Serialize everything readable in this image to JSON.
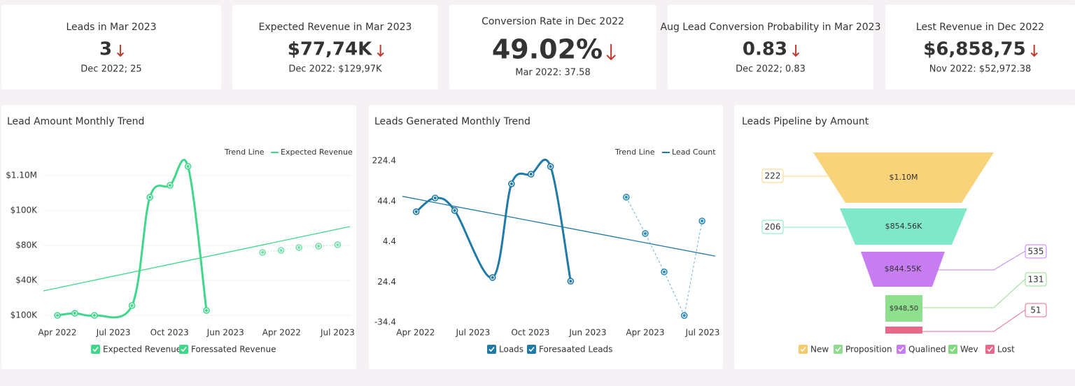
{
  "kpis": [
    {
      "title": "Leads in Mar 2023",
      "value": "3",
      "comparison": "Dec 2022; 25"
    },
    {
      "title": "Expected Revenue in Mar 2023",
      "value": "$77,74K",
      "comparison": "Dec 2022: $129,97K"
    },
    {
      "title": "Conversion Rate in Dec 2022",
      "value": "49.02%",
      "comparison": "Mar 2022: 37.58"
    },
    {
      "title": "Aug Lead Conversion Probability in Mar 2023",
      "value": "0.83",
      "comparison": "Dec 2022; 0.83"
    },
    {
      "title": "Lest Revenue in Dec 2022",
      "value": "$6,858,75",
      "comparison": "Nov 2022: $52,972.38"
    }
  ],
  "charts": [
    {
      "type": "line",
      "title": "Lead Amount Monthly Trend",
      "legend_top": [
        "Trend Line",
        "Expected Revenue"
      ],
      "xlim": [
        -0.25,
        5.22
      ],
      "xticks": [
        {
          "value": 0,
          "label": "Apr 2022"
        },
        {
          "value": 1,
          "label": "Jul 2023"
        },
        {
          "value": 2,
          "label": "Oct 2023"
        },
        {
          "value": 3,
          "label": "Jun 2023"
        },
        {
          "value": 4,
          "label": "Apr 2022"
        },
        {
          "value": 5,
          "label": "Jul 2023"
        }
      ],
      "ylim": [
        0,
        4
      ],
      "yticks": [
        {
          "value": 0,
          "label": "$100K"
        },
        {
          "value": 1,
          "label": "$40K"
        },
        {
          "value": 2,
          "label": "$80K"
        },
        {
          "value": 3,
          "label": "$100K"
        },
        {
          "value": 4,
          "label": "$1.10M"
        }
      ],
      "grid": true,
      "series": [
        {
          "name": "Expected Revenue",
          "color": "#3fd88a",
          "line_style": "smooth",
          "markers": true,
          "x": [
            0,
            0.31,
            0.66,
            1.33,
            1.65,
            2.01,
            2.33,
            2.66
          ],
          "values": [
            0,
            0.06,
            0,
            0.28,
            3.38,
            3.72,
            4.26,
            0.14
          ]
        },
        {
          "name": "Foressated Revenue",
          "color": "#6fe3a8",
          "line_style": "dotted",
          "markers": true,
          "x": [
            3.66,
            3.99,
            4.31,
            4.66,
            5
          ],
          "values": [
            1.8,
            1.86,
            1.94,
            1.98,
            2.02
          ]
        },
        {
          "color": "#3fd88a",
          "line_style": "straight",
          "markers": false,
          "trend": true,
          "x": [
            -0.25,
            5.22
          ],
          "values": [
            0.7,
            2.54
          ]
        }
      ]
    },
    {
      "type": "line",
      "title": "Leads Generated Monthly Trend",
      "legend_top": [
        "Trend Line",
        "Lead Count"
      ],
      "xlim": [
        -0.23,
        5.22
      ],
      "xticks": [
        {
          "value": 0,
          "label": "Apr 2022"
        },
        {
          "value": 1,
          "label": "Jul 2023"
        },
        {
          "value": 2,
          "label": "Oct 2023"
        },
        {
          "value": 3,
          "label": "Jun 2023"
        },
        {
          "value": 4,
          "label": "Apr 2023"
        },
        {
          "value": 5,
          "label": "Jul 2023"
        }
      ],
      "ylim": [
        0,
        4
      ],
      "yticks": [
        {
          "value": 0,
          "label": "-34.4"
        },
        {
          "value": 1,
          "label": "24.4"
        },
        {
          "value": 2,
          "label": "4.4"
        },
        {
          "value": 3,
          "label": "44.4"
        },
        {
          "value": 4,
          "label": "224.4"
        }
      ],
      "grid": false,
      "series": [
        {
          "name": "Loads",
          "color": "#1f7aa8",
          "line_style": "smooth",
          "markers": true,
          "x": [
            0.01,
            0.34,
            0.68,
            1.34,
            1.67,
            2.01,
            2.35,
            2.7
          ],
          "values": [
            2.74,
            3.08,
            2.77,
            1.11,
            3.43,
            3.67,
            3.86,
            1.02
          ]
        },
        {
          "name": "Foresaated Leads",
          "color": "#2a8bbd",
          "line_style": "dashed",
          "markers": true,
          "x": [
            3.67,
            4,
            4.33,
            4.68,
            4.99
          ],
          "values": [
            3.1,
            2.2,
            1.25,
            0.17,
            2.51
          ]
        },
        {
          "color": "#1f7aa8",
          "line_style": "straight",
          "markers": false,
          "trend": true,
          "x": [
            -0.23,
            5.22
          ],
          "values": [
            3.12,
            1.64
          ]
        }
      ]
    }
  ],
  "funnel": {
    "title": "Leads Pipeline by Amount",
    "stages": [
      {
        "name": "New",
        "label": "$1.10M",
        "count": 222,
        "color": "#f8d37a"
      },
      {
        "name": "Proposition",
        "label": "$854.56K",
        "count": 206,
        "color": "#7ee8c8"
      },
      {
        "name": "Qualined",
        "label": "$844.55K",
        "count": 535,
        "color": "#c77cf2"
      },
      {
        "name": "Wev",
        "label": "$948,50",
        "count": 131,
        "color": "#8ee08e"
      },
      {
        "name": "Lost",
        "label": null,
        "count": 51,
        "color": "#e8688a"
      }
    ],
    "legend_colors": [
      "#f6c96a",
      "#8fdc8f",
      "#c77cf2",
      "#7fd97f",
      "#e8688a"
    ]
  }
}
